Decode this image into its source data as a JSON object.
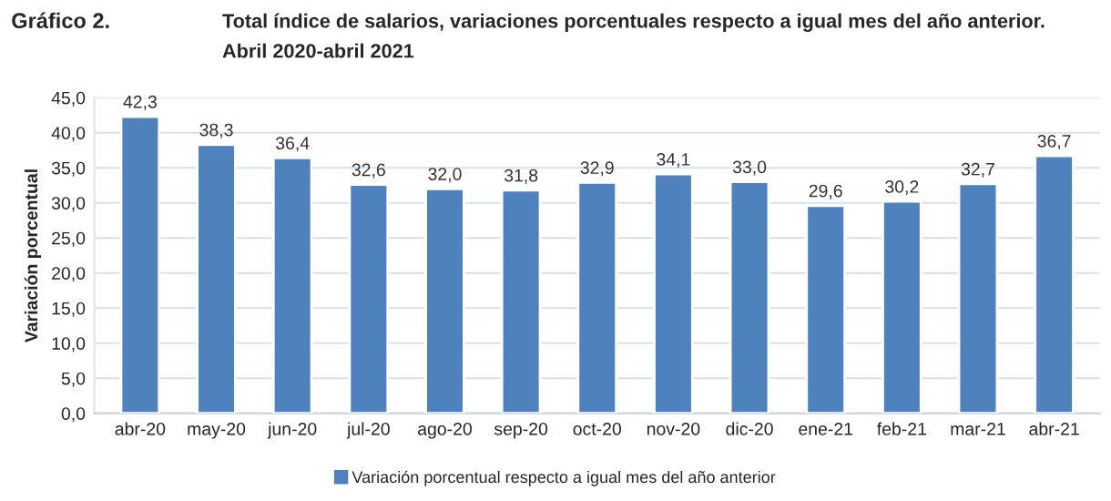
{
  "chart_data": {
    "type": "bar",
    "title": "Total índice de salarios, variaciones porcentuales respecto a igual mes del año anterior.",
    "subtitle": "Abril 2020-abril 2021",
    "annotations": [
      "Gráfico 2."
    ],
    "ylabel": "Variación porcentual",
    "categories": [
      "abr-20",
      "may-20",
      "jun-20",
      "jul-20",
      "ago-20",
      "sep-20",
      "oct-20",
      "nov-20",
      "dic-20",
      "ene-21",
      "feb-21",
      "mar-21",
      "abr-21"
    ],
    "series": [
      {
        "name": "Variación porcentual respecto a igual mes del año anterior",
        "color": "#4f81bd",
        "values": [
          42.3,
          38.3,
          36.4,
          32.6,
          32.0,
          31.8,
          32.9,
          34.1,
          33.0,
          29.6,
          30.2,
          32.7,
          36.7
        ],
        "value_labels": [
          "42,3",
          "38,3",
          "36,4",
          "32,6",
          "32,0",
          "31,8",
          "32,9",
          "34,1",
          "33,0",
          "29,6",
          "30,2",
          "32,7",
          "36,7"
        ]
      }
    ],
    "ylim": [
      0,
      45
    ],
    "yticks": [
      {
        "value": 0,
        "label": "0,0"
      },
      {
        "value": 5,
        "label": "5,0"
      },
      {
        "value": 10,
        "label": "10,0"
      },
      {
        "value": 15,
        "label": "15,0"
      },
      {
        "value": 20,
        "label": "20,0"
      },
      {
        "value": 25,
        "label": "25,0"
      },
      {
        "value": 30,
        "label": "30,0"
      },
      {
        "value": 35,
        "label": "35,0"
      },
      {
        "value": 40,
        "label": "40,0"
      },
      {
        "value": 45,
        "label": "45,0"
      }
    ],
    "grid": "y",
    "legend": "bottom"
  }
}
